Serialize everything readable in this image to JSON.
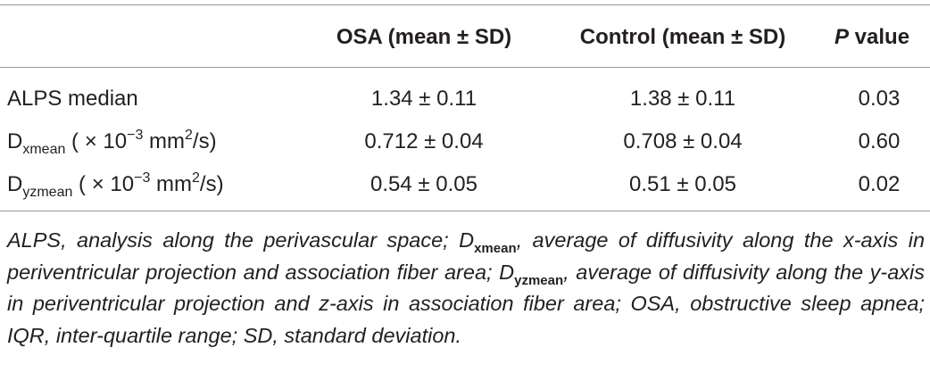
{
  "table": {
    "header": {
      "osa": "OSA (mean ± SD)",
      "control": "Control (mean ± SD)",
      "p_italic": "P",
      "p_rest": " value"
    },
    "rows": [
      {
        "label": [
          {
            "text": "ALPS median"
          }
        ],
        "osa": "1.34 ± 0.11",
        "control": "1.38 ± 0.11",
        "p": "0.03"
      },
      {
        "label": [
          {
            "text": "D"
          },
          {
            "text": "xmean",
            "pos": "sub"
          },
          {
            "text": " ( × 10"
          },
          {
            "text": "−3",
            "pos": "sup"
          },
          {
            "text": " mm"
          },
          {
            "text": "2",
            "pos": "sup"
          },
          {
            "text": "/s)"
          }
        ],
        "osa": "0.712 ± 0.04",
        "control": "0.708 ± 0.04",
        "p": "0.60"
      },
      {
        "label": [
          {
            "text": "D"
          },
          {
            "text": "yzmean",
            "pos": "sub"
          },
          {
            "text": " ( × 10"
          },
          {
            "text": "−3",
            "pos": "sup"
          },
          {
            "text": " mm"
          },
          {
            "text": "2",
            "pos": "sup"
          },
          {
            "text": "/s)"
          }
        ],
        "osa": "0.54 ± 0.05",
        "control": "0.51 ± 0.05",
        "p": "0.02"
      }
    ],
    "footnote": [
      {
        "text": "ALPS, analysis along the perivascular space; D"
      },
      {
        "text": "xmean",
        "pos": "sub"
      },
      {
        "text": ", average of diffusivity along the x-axis in periventricular projection and association fiber area; D"
      },
      {
        "text": "yzmean",
        "pos": "sub"
      },
      {
        "text": ", average of diffusivity along the y-axis in periventricular projection and z-axis in association fiber area; OSA, obstructive sleep apnea; IQR, inter-quartile range; SD, standard deviation."
      }
    ]
  }
}
